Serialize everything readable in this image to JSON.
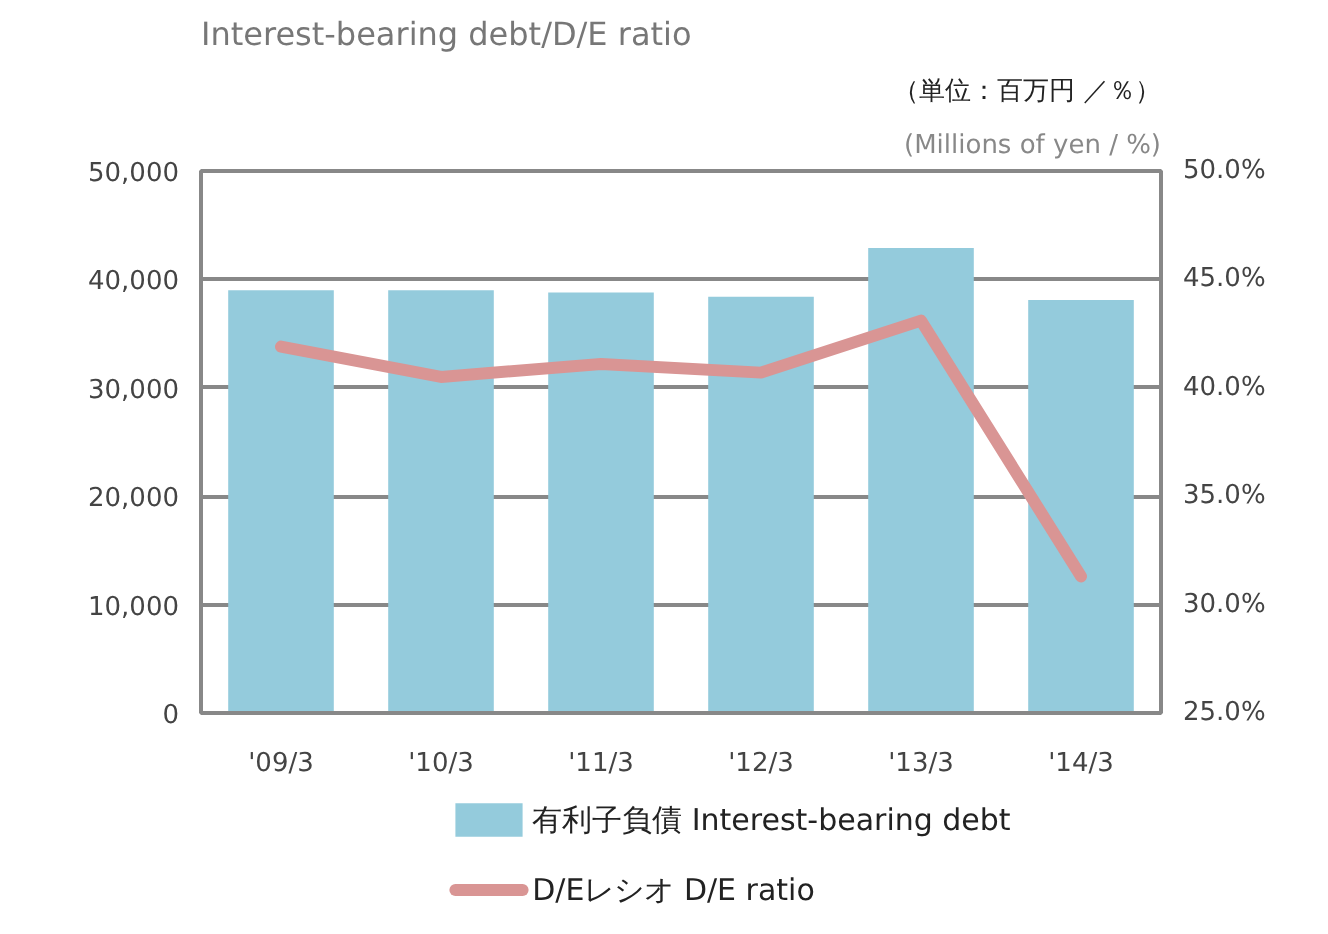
{
  "chart_data": {
    "type": "bar",
    "title": "Interest-bearing debt/D/E ratio",
    "annotations": [
      "（単位：百万円 ／％）",
      "(Millions of yen / %)"
    ],
    "categories": [
      "'09/3",
      "'10/3",
      "'11/3",
      "'12/3",
      "'13/3",
      "'14/3"
    ],
    "series": [
      {
        "name": "有利子負債 Interest-bearing debt",
        "color": "#94cbdc",
        "values": [
          39000,
          39000,
          38800,
          38400,
          42900,
          38100
        ]
      },
      {
        "name": "D/Eレシオ D/E ratio",
        "type": "line",
        "axis": "y2",
        "color": "#d99594",
        "values": [
          41.9,
          40.5,
          41.1,
          40.7,
          43.1,
          31.3
        ]
      }
    ],
    "ylim": [
      0,
      50000
    ],
    "yticks": [
      0,
      {
        "value": 10000,
        "label": "10,000"
      },
      {
        "value": 20000,
        "label": "20,000"
      },
      {
        "value": 30000,
        "label": "30,000"
      },
      {
        "value": 40000,
        "label": "40,000"
      },
      {
        "value": 50000,
        "label": "50,000"
      }
    ],
    "y2lim": [
      25,
      50
    ],
    "y2ticks": [
      {
        "value": 25,
        "label": "25.0%"
      },
      {
        "value": 30,
        "label": "30.0%"
      },
      {
        "value": 35,
        "label": "35.0%"
      },
      {
        "value": 40,
        "label": "40.0%"
      },
      {
        "value": 45,
        "label": "45.0%"
      },
      {
        "value": 50,
        "label": "50.0%"
      }
    ],
    "grid": "y",
    "legend": "bottom",
    "marker": "none",
    "line_style": "solid"
  }
}
